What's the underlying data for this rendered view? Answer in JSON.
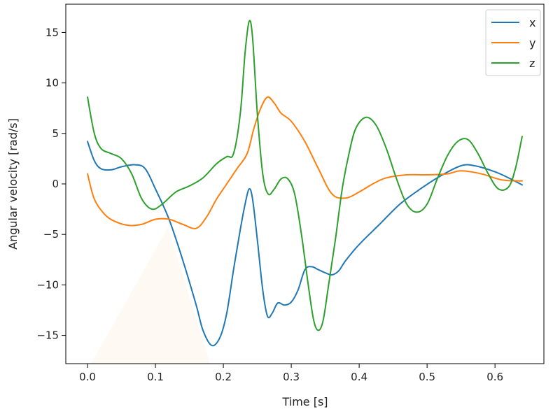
{
  "chart_data": {
    "type": "line",
    "title": "",
    "xlabel": "Time [s]",
    "ylabel": "Angular velocity [rad/s]",
    "xlim": [
      -0.032,
      0.672
    ],
    "ylim": [
      -17.8,
      17.8
    ],
    "xticks": [
      0.0,
      0.1,
      0.2,
      0.3,
      0.4,
      0.5,
      0.6
    ],
    "xtick_labels": [
      "0.0",
      "0.1",
      "0.2",
      "0.3",
      "0.4",
      "0.5",
      "0.6"
    ],
    "yticks": [
      15,
      10,
      5,
      0,
      -5,
      -10,
      -15
    ],
    "ytick_labels": [
      "15",
      "10",
      "5",
      "0",
      "−5",
      "−10",
      "−15"
    ],
    "grid": false,
    "legend_position": "top-right",
    "series": [
      {
        "name": "x",
        "color": "#1f77b4",
        "points": [
          [
            0.0,
            4.2
          ],
          [
            0.01,
            2.3
          ],
          [
            0.02,
            1.5
          ],
          [
            0.035,
            1.4
          ],
          [
            0.05,
            1.7
          ],
          [
            0.07,
            1.9
          ],
          [
            0.085,
            1.5
          ],
          [
            0.1,
            -0.5
          ],
          [
            0.12,
            -3.5
          ],
          [
            0.14,
            -7.5
          ],
          [
            0.16,
            -12.0
          ],
          [
            0.17,
            -14.5
          ],
          [
            0.183,
            -16.0
          ],
          [
            0.195,
            -15.2
          ],
          [
            0.205,
            -12.8
          ],
          [
            0.215,
            -8.5
          ],
          [
            0.225,
            -4.5
          ],
          [
            0.232,
            -2.0
          ],
          [
            0.238,
            -0.5
          ],
          [
            0.243,
            -1.5
          ],
          [
            0.25,
            -5.5
          ],
          [
            0.258,
            -10.5
          ],
          [
            0.265,
            -13.1
          ],
          [
            0.272,
            -12.8
          ],
          [
            0.28,
            -11.8
          ],
          [
            0.29,
            -12.0
          ],
          [
            0.3,
            -11.7
          ],
          [
            0.31,
            -10.5
          ],
          [
            0.32,
            -8.5
          ],
          [
            0.33,
            -8.2
          ],
          [
            0.34,
            -8.5
          ],
          [
            0.35,
            -8.8
          ],
          [
            0.36,
            -9.0
          ],
          [
            0.37,
            -8.6
          ],
          [
            0.38,
            -7.6
          ],
          [
            0.4,
            -6.0
          ],
          [
            0.43,
            -4.0
          ],
          [
            0.46,
            -2.0
          ],
          [
            0.49,
            -0.5
          ],
          [
            0.52,
            0.8
          ],
          [
            0.55,
            1.8
          ],
          [
            0.57,
            1.8
          ],
          [
            0.6,
            1.2
          ],
          [
            0.62,
            0.6
          ],
          [
            0.64,
            -0.1
          ]
        ]
      },
      {
        "name": "y",
        "color": "#ff7f0e",
        "points": [
          [
            0.0,
            1.0
          ],
          [
            0.01,
            -1.5
          ],
          [
            0.025,
            -3.0
          ],
          [
            0.04,
            -3.7
          ],
          [
            0.06,
            -4.1
          ],
          [
            0.08,
            -4.0
          ],
          [
            0.1,
            -3.5
          ],
          [
            0.12,
            -3.5
          ],
          [
            0.14,
            -4.0
          ],
          [
            0.16,
            -4.4
          ],
          [
            0.175,
            -3.3
          ],
          [
            0.19,
            -1.5
          ],
          [
            0.205,
            0.0
          ],
          [
            0.22,
            1.5
          ],
          [
            0.235,
            3.0
          ],
          [
            0.245,
            5.5
          ],
          [
            0.255,
            7.5
          ],
          [
            0.265,
            8.6
          ],
          [
            0.275,
            8.0
          ],
          [
            0.285,
            7.0
          ],
          [
            0.3,
            6.2
          ],
          [
            0.32,
            4.2
          ],
          [
            0.34,
            1.5
          ],
          [
            0.36,
            -1.0
          ],
          [
            0.38,
            -1.4
          ],
          [
            0.4,
            -0.8
          ],
          [
            0.42,
            0.0
          ],
          [
            0.44,
            0.6
          ],
          [
            0.47,
            0.9
          ],
          [
            0.5,
            0.9
          ],
          [
            0.53,
            1.0
          ],
          [
            0.55,
            1.3
          ],
          [
            0.58,
            1.0
          ],
          [
            0.61,
            0.4
          ],
          [
            0.64,
            0.3
          ]
        ]
      },
      {
        "name": "z",
        "color": "#2ca02c",
        "points": [
          [
            0.0,
            8.6
          ],
          [
            0.01,
            5.0
          ],
          [
            0.02,
            3.5
          ],
          [
            0.035,
            3.0
          ],
          [
            0.05,
            2.5
          ],
          [
            0.065,
            1.0
          ],
          [
            0.08,
            -1.5
          ],
          [
            0.095,
            -2.5
          ],
          [
            0.11,
            -2.0
          ],
          [
            0.13,
            -0.8
          ],
          [
            0.15,
            -0.2
          ],
          [
            0.17,
            0.6
          ],
          [
            0.19,
            2.0
          ],
          [
            0.205,
            2.7
          ],
          [
            0.215,
            3.0
          ],
          [
            0.225,
            7.0
          ],
          [
            0.232,
            13.0
          ],
          [
            0.238,
            16.1
          ],
          [
            0.243,
            14.5
          ],
          [
            0.25,
            7.0
          ],
          [
            0.258,
            1.0
          ],
          [
            0.266,
            -1.0
          ],
          [
            0.275,
            -0.5
          ],
          [
            0.285,
            0.5
          ],
          [
            0.295,
            0.5
          ],
          [
            0.305,
            -1.0
          ],
          [
            0.315,
            -5.0
          ],
          [
            0.325,
            -10.0
          ],
          [
            0.333,
            -13.5
          ],
          [
            0.34,
            -14.5
          ],
          [
            0.347,
            -13.5
          ],
          [
            0.355,
            -10.0
          ],
          [
            0.365,
            -5.5
          ],
          [
            0.375,
            -0.5
          ],
          [
            0.385,
            3.0
          ],
          [
            0.395,
            5.5
          ],
          [
            0.41,
            6.6
          ],
          [
            0.425,
            5.8
          ],
          [
            0.44,
            3.5
          ],
          [
            0.455,
            0.5
          ],
          [
            0.47,
            -2.0
          ],
          [
            0.485,
            -2.8
          ],
          [
            0.5,
            -2.0
          ],
          [
            0.515,
            0.5
          ],
          [
            0.53,
            2.8
          ],
          [
            0.545,
            4.2
          ],
          [
            0.56,
            4.4
          ],
          [
            0.575,
            3.0
          ],
          [
            0.59,
            1.0
          ],
          [
            0.605,
            -0.5
          ],
          [
            0.62,
            -0.3
          ],
          [
            0.63,
            1.5
          ],
          [
            0.64,
            4.7
          ]
        ]
      }
    ]
  }
}
